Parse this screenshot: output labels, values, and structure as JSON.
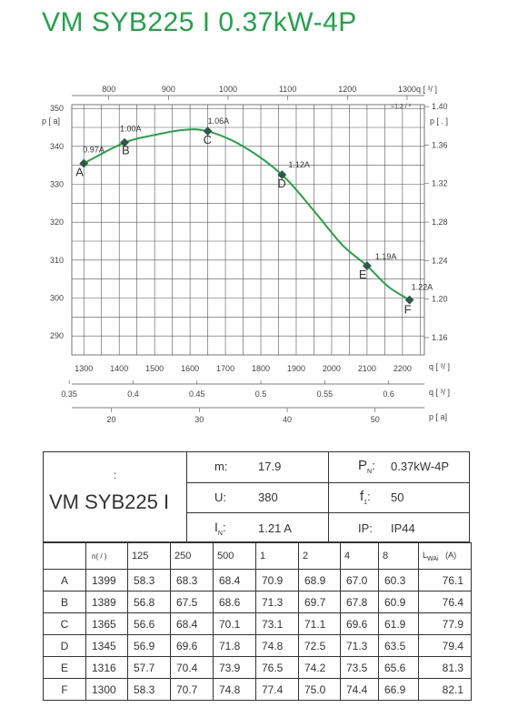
{
  "title": "VM SYB225 I 0.37kW-4P",
  "chart_data": {
    "type": "line",
    "x_axes": {
      "top": {
        "label": "q",
        "unit": "[ ³/ ]",
        "sub_note": "=1.2 / ³",
        "ticks": [
          800,
          900,
          1000,
          1100,
          1200,
          1300
        ],
        "range": [
          738,
          1329
        ]
      },
      "main": {
        "label": "q",
        "unit": "[ ³/ ]",
        "ticks": [
          1300,
          1400,
          1500,
          1600,
          1700,
          1800,
          1900,
          2000,
          2100,
          2200
        ],
        "range": [
          1266,
          2262
        ]
      },
      "secondary": {
        "label": "q",
        "unit": "[ ³/ ]",
        "ticks": [
          "0.35",
          "0.4",
          "0.45",
          "0.5",
          "0.55",
          "0.6"
        ],
        "range": [
          0.352,
          0.628
        ]
      },
      "bottom": {
        "label": "p",
        "unit": "[ a]",
        "ticks": [
          20,
          30,
          40,
          50
        ],
        "range": [
          15.5,
          55.6
        ]
      }
    },
    "y_axes": {
      "left": {
        "label": "p",
        "unit": "[ a]",
        "ticks": [
          290,
          300,
          310,
          320,
          330,
          340,
          350
        ],
        "range": [
          285,
          351
        ]
      },
      "right": {
        "label": "p",
        "unit": "[ . ]",
        "ticks": [
          "1.16",
          "1.20",
          "1.24",
          "1.28",
          "1.32",
          "1.36",
          "1.40"
        ],
        "range": [
          1.142,
          1.402
        ]
      }
    },
    "series": [
      {
        "points": [
          {
            "letter": "A",
            "current": "0.97A",
            "x": 1300,
            "y": 335.5
          },
          {
            "letter": "B",
            "current": "1.00A",
            "x": 1415,
            "y": 341.0
          },
          {
            "letter": "C",
            "current": "1.06A",
            "x": 1650,
            "y": 344.0
          },
          {
            "letter": "D",
            "current": "1.12A",
            "x": 1860,
            "y": 332.5
          },
          {
            "letter": "E",
            "current": "1.19A",
            "x": 2100,
            "y": 308.5
          },
          {
            "letter": "F",
            "current": "1.22A",
            "x": 2220,
            "y": 299.5
          }
        ],
        "curve": [
          [
            1300,
            335.5
          ],
          [
            1415,
            341.0
          ],
          [
            1500,
            343.0
          ],
          [
            1580,
            344.3
          ],
          [
            1650,
            344.0
          ],
          [
            1750,
            340.0
          ],
          [
            1860,
            332.5
          ],
          [
            1950,
            323.0
          ],
          [
            2030,
            314.0
          ],
          [
            2100,
            308.5
          ],
          [
            2160,
            303.0
          ],
          [
            2220,
            299.5
          ]
        ],
        "color": "#22a34a"
      }
    ],
    "grid": true,
    "legend": "none"
  },
  "spec": {
    "model_top": ":",
    "model": "VM SYB225 I",
    "m_label": "m:",
    "m_value": "17.9",
    "pn_label": "P",
    "pn_sub": "N",
    "pn_colon": ":",
    "pn_value": "0.37kW-4P",
    "u_label": "U:",
    "u_value": "380",
    "f_label": "f",
    "f_sub": "1",
    "f_colon": ":",
    "f_value": "50",
    "in_label": "I",
    "in_sub": "N",
    "in_colon": ":",
    "in_value": "1.21 A",
    "ip_label": "IP:",
    "ip_value": "IP44"
  },
  "noise": {
    "header_n": "n( / )",
    "bands": [
      "125",
      "250",
      "500",
      "1",
      "2",
      "4",
      "8"
    ],
    "total_label": "L",
    "total_sub": "WAi",
    "total_unit": "(A)",
    "rows": [
      {
        "label": "A",
        "n": "1399",
        "values": [
          "58.3",
          "68.3",
          "68.4",
          "70.9",
          "68.9",
          "67.0",
          "60.3"
        ],
        "total": "76.1"
      },
      {
        "label": "B",
        "n": "1389",
        "values": [
          "56.8",
          "67.5",
          "68.6",
          "71.3",
          "69.7",
          "67.8",
          "60.9"
        ],
        "total": "76.4"
      },
      {
        "label": "C",
        "n": "1365",
        "values": [
          "56.6",
          "68.4",
          "70.1",
          "73.1",
          "71.1",
          "69.6",
          "61.9"
        ],
        "total": "77.9"
      },
      {
        "label": "D",
        "n": "1345",
        "values": [
          "56.9",
          "69.6",
          "71.8",
          "74.8",
          "72.5",
          "71.3",
          "63.5"
        ],
        "total": "79.4"
      },
      {
        "label": "E",
        "n": "1316",
        "values": [
          "57.7",
          "70.4",
          "73.9",
          "76.5",
          "74.2",
          "73.5",
          "65.6"
        ],
        "total": "81.3"
      },
      {
        "label": "F",
        "n": "1300",
        "values": [
          "58.3",
          "70.7",
          "74.8",
          "77.4",
          "75.0",
          "74.4",
          "66.9"
        ],
        "total": "82.1"
      }
    ]
  }
}
